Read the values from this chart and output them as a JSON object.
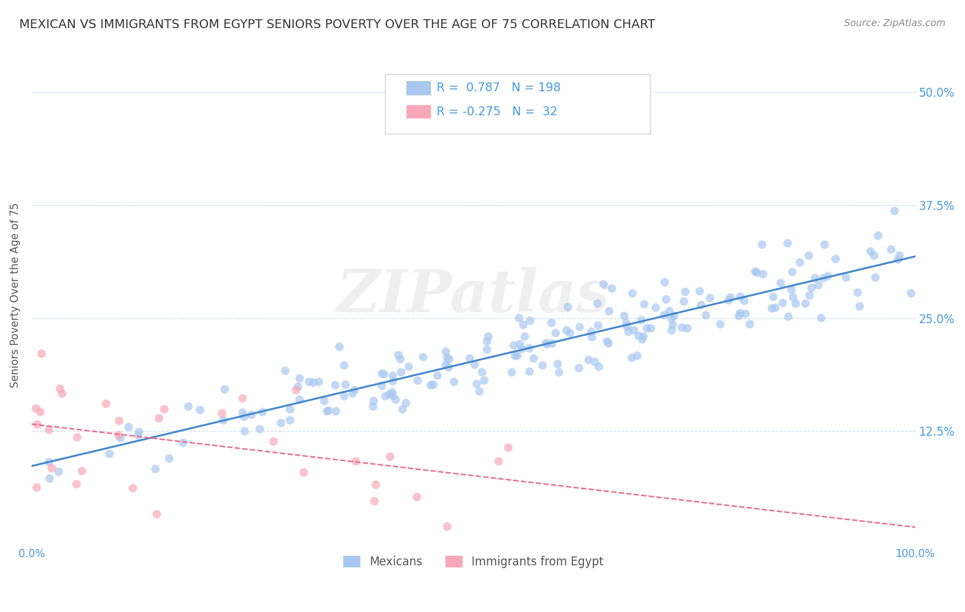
{
  "title": "MEXICAN VS IMMIGRANTS FROM EGYPT SENIORS POVERTY OVER THE AGE OF 75 CORRELATION CHART",
  "source": "Source: ZipAtlas.com",
  "xlabel": "",
  "ylabel": "Seniors Poverty Over the Age of 75",
  "legend_labels": [
    "Mexicans",
    "Immigrants from Egypt"
  ],
  "r_mexican": 0.787,
  "n_mexican": 198,
  "r_egypt": -0.275,
  "n_egypt": 32,
  "xlim": [
    0.0,
    1.0
  ],
  "ylim": [
    0.0,
    0.55
  ],
  "yticks": [
    0.0,
    0.125,
    0.25,
    0.375,
    0.5
  ],
  "ytick_labels": [
    "",
    "12.5%",
    "25.0%",
    "37.5%",
    "50.0%"
  ],
  "xticks": [
    0.0,
    0.25,
    0.5,
    0.75,
    1.0
  ],
  "xtick_labels": [
    "0.0%",
    "",
    "",
    "",
    "100.0%"
  ],
  "color_mexican": "#a8c8f0",
  "color_egypt": "#f8a8b8",
  "line_color_mexican": "#4488cc",
  "line_color_egypt": "#ee6688",
  "background_color": "#ffffff",
  "watermark": "ZIPatlas",
  "title_color": "#333333",
  "axis_label_color": "#4499dd",
  "tick_color": "#4499dd",
  "grid_color": "#ccddee",
  "legend_r_color": "#4499dd",
  "dot_edge_alpha": 0.0,
  "dot_alpha": 0.7,
  "title_fontsize": 13,
  "source_fontsize": 10,
  "ylabel_fontsize": 11,
  "legend_fontsize": 12
}
